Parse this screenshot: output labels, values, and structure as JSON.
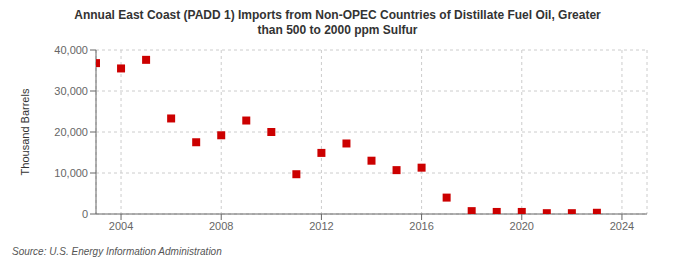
{
  "chart_data": {
    "type": "scatter",
    "title": "Annual East Coast (PADD 1) Imports from Non-OPEC Countries of Distillate Fuel Oil, Greater\nthan 500 to 2000 ppm Sulfur",
    "ylabel": "Thousand Barrels",
    "annotation": "Source: U.S. Energy Information Administration",
    "x": [
      2003,
      2004,
      2005,
      2006,
      2007,
      2008,
      2009,
      2010,
      2011,
      2012,
      2013,
      2014,
      2015,
      2016,
      2017,
      2018,
      2019,
      2020,
      2021,
      2022,
      2023
    ],
    "values": [
      36800,
      35500,
      37600,
      23300,
      17500,
      19200,
      22800,
      20000,
      9700,
      14900,
      17200,
      13000,
      10700,
      11300,
      4000,
      700,
      500,
      500,
      200,
      200,
      300
    ],
    "color": "#cc0000",
    "marker": "square",
    "xlim": [
      2003,
      2025
    ],
    "xticks": [
      2004,
      2008,
      2012,
      2016,
      2020,
      2024
    ],
    "ylim": [
      0,
      40000
    ],
    "yticks": [
      0,
      {
        "value": 10000,
        "label": "10,000"
      },
      {
        "value": 20000,
        "label": "20,000"
      },
      {
        "value": 30000,
        "label": "30,000"
      },
      {
        "value": 40000,
        "label": "40,000"
      }
    ],
    "grid": true
  }
}
